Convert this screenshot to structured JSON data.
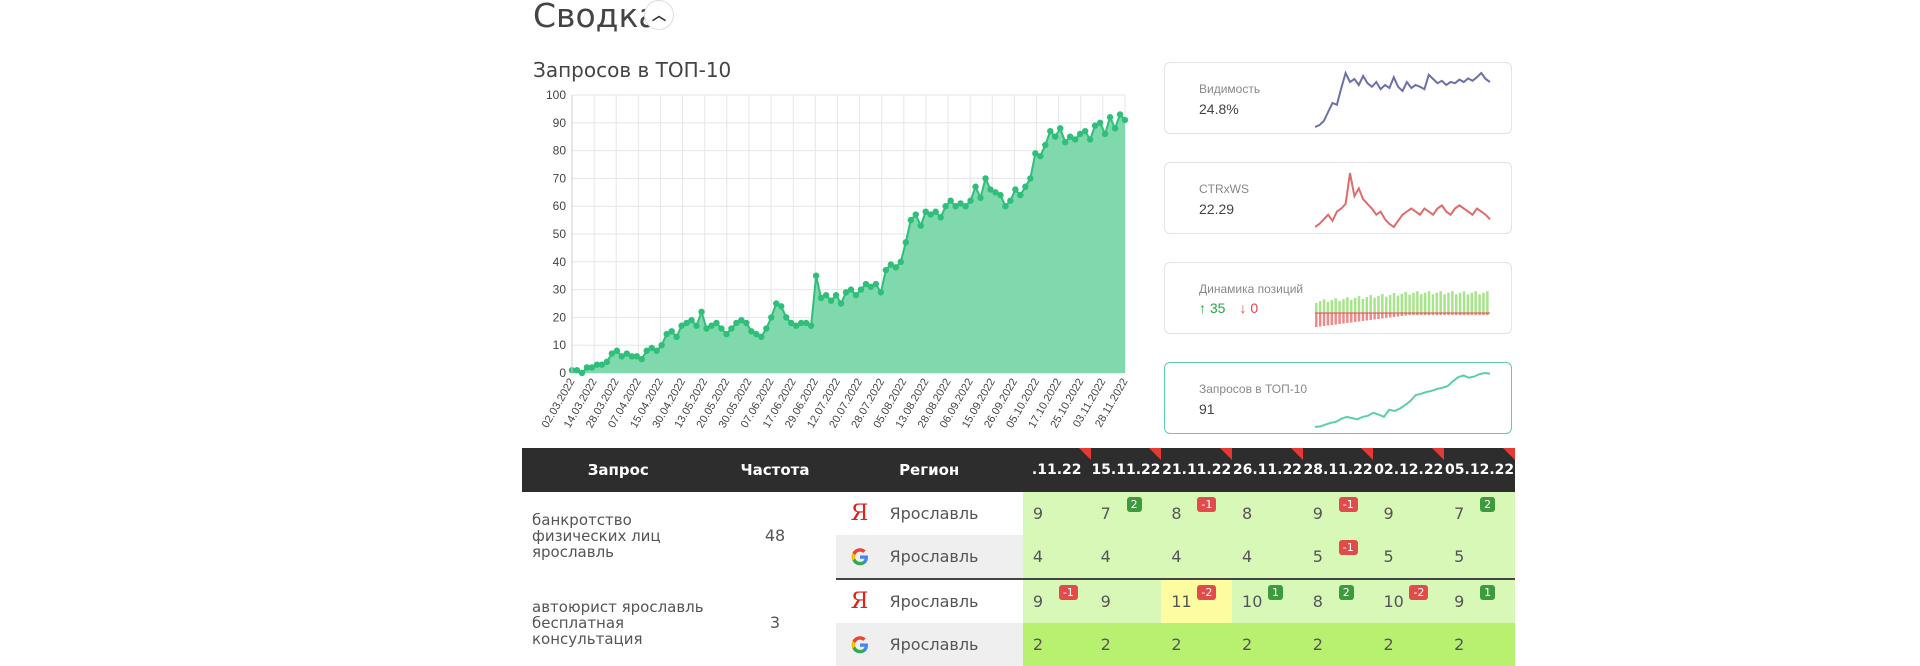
{
  "header": {
    "title": "Сводка",
    "collapse_icon": "chevron-up-icon"
  },
  "main_chart": {
    "title": "Запросов в ТОП-10",
    "chart_data": {
      "type": "area",
      "title": "Запросов в ТОП-10",
      "ylim": [
        0,
        100
      ],
      "yticks": [
        "0",
        "10",
        "20",
        "30",
        "40",
        "50",
        "60",
        "70",
        "80",
        "90",
        "100"
      ],
      "xticks": [
        "02.03.2022",
        "14.03.2022",
        "28.03.2022",
        "07.04.2022",
        "15.04.2022",
        "30.04.2022",
        "13.05.2022",
        "20.05.2022",
        "30.05.2022",
        "07.06.2022",
        "17.06.2022",
        "29.06.2022",
        "12.07.2022",
        "20.07.2022",
        "28.07.2022",
        "05.08.2022",
        "13.08.2022",
        "28.08.2022",
        "06.09.2022",
        "15.09.2022",
        "26.09.2022",
        "05.10.2022",
        "17.10.2022",
        "25.10.2022",
        "03.11.2022",
        "28.11.2022"
      ],
      "values": [
        1,
        1,
        0,
        2,
        2,
        3,
        3,
        4,
        7,
        8,
        6,
        7,
        6,
        6,
        5,
        8,
        9,
        8,
        10,
        14,
        15,
        13,
        17,
        18,
        19,
        17,
        22,
        16,
        17,
        18,
        16,
        14,
        16,
        18,
        19,
        18,
        15,
        14,
        13,
        16,
        20,
        25,
        24,
        20,
        18,
        17,
        18,
        18,
        17,
        35,
        27,
        28,
        26,
        28,
        25,
        29,
        30,
        28,
        30,
        32,
        31,
        32,
        29,
        37,
        39,
        38,
        40,
        47,
        55,
        57,
        53,
        58,
        57,
        58,
        56,
        60,
        62,
        60,
        61,
        60,
        62,
        67,
        63,
        70,
        66,
        65,
        64,
        60,
        62,
        66,
        64,
        67,
        70,
        79,
        78,
        82,
        87,
        85,
        88,
        83,
        85,
        84,
        86,
        87,
        84,
        89,
        90,
        86,
        92,
        88,
        93,
        91
      ]
    }
  },
  "cards": [
    {
      "label": "Видимость",
      "value": "24.8%",
      "color": "#6b70a8",
      "spark": [
        5,
        8,
        15,
        30,
        45,
        42,
        70,
        95,
        80,
        85,
        75,
        90,
        78,
        72,
        80,
        68,
        75,
        70,
        88,
        72,
        65,
        80,
        70,
        75,
        72,
        68,
        92,
        85,
        78,
        82,
        75,
        80,
        78,
        84,
        80,
        86,
        82,
        88,
        95,
        85,
        80
      ]
    },
    {
      "label": "CTRxWS",
      "value": "22.29",
      "color": "#e06b6b",
      "spark": [
        10,
        12,
        15,
        18,
        14,
        20,
        22,
        25,
        45,
        30,
        35,
        28,
        25,
        22,
        18,
        20,
        15,
        12,
        10,
        14,
        18,
        20,
        22,
        20,
        18,
        22,
        20,
        18,
        22,
        24,
        20,
        18,
        22,
        24,
        22,
        20,
        18,
        22,
        20,
        18,
        15
      ]
    },
    {
      "label": "Динамика позиций",
      "up": "↑ 35",
      "down": "↓ 0"
    },
    {
      "label": "Запросов в ТОП-10",
      "value": "91",
      "color": "#5ccfa7",
      "spark": [
        1,
        2,
        5,
        8,
        10,
        15,
        18,
        16,
        14,
        18,
        20,
        25,
        22,
        18,
        30,
        28,
        32,
        38,
        45,
        55,
        57,
        60,
        62,
        65,
        67,
        70,
        78,
        85,
        88,
        84,
        86,
        90,
        92,
        91
      ]
    }
  ],
  "table": {
    "headers": {
      "query": "Запрос",
      "freq": "Частота",
      "region": "Регион"
    },
    "dates": [
      ".11.22",
      "15.11.22",
      "21.11.22",
      "26.11.22",
      "28.11.22",
      "02.12.22",
      "05.12.22"
    ],
    "rows": [
      {
        "query": "банкротство физических лиц ярославль",
        "freq": "48",
        "engines": [
          {
            "engine": "yandex-icon",
            "symbol": "Я",
            "region": "Ярославль",
            "cells": [
              {
                "v": "9",
                "b": null,
                "c": "bg-light"
              },
              {
                "v": "7",
                "b": "2",
                "c": "bg-light"
              },
              {
                "v": "8",
                "b": "-1",
                "c": "bg-light"
              },
              {
                "v": "8",
                "b": null,
                "c": "bg-light"
              },
              {
                "v": "9",
                "b": "-1",
                "c": "bg-light"
              },
              {
                "v": "9",
                "b": null,
                "c": "bg-light"
              },
              {
                "v": "7",
                "b": "2",
                "c": "bg-light"
              }
            ]
          },
          {
            "engine": "google-icon",
            "symbol": "G",
            "region": "Ярославль",
            "cells": [
              {
                "v": "4",
                "b": null,
                "c": "bg-light"
              },
              {
                "v": "4",
                "b": null,
                "c": "bg-light"
              },
              {
                "v": "4",
                "b": null,
                "c": "bg-light"
              },
              {
                "v": "4",
                "b": null,
                "c": "bg-light"
              },
              {
                "v": "5",
                "b": "-1",
                "c": "bg-light"
              },
              {
                "v": "5",
                "b": null,
                "c": "bg-light"
              },
              {
                "v": "5",
                "b": null,
                "c": "bg-light"
              }
            ]
          }
        ]
      },
      {
        "query": "автоюрист ярославль бесплатная консультация",
        "freq": "3",
        "engines": [
          {
            "engine": "yandex-icon",
            "symbol": "Я",
            "region": "Ярославль",
            "cells": [
              {
                "v": "9",
                "b": "-1",
                "c": "bg-light"
              },
              {
                "v": "9",
                "b": null,
                "c": "bg-light"
              },
              {
                "v": "11",
                "b": "-2",
                "c": "bg-yellow"
              },
              {
                "v": "10",
                "b": "1",
                "c": "bg-light"
              },
              {
                "v": "8",
                "b": "2",
                "c": "bg-light"
              },
              {
                "v": "10",
                "b": "-2",
                "c": "bg-light"
              },
              {
                "v": "9",
                "b": "1",
                "c": "bg-light"
              }
            ]
          },
          {
            "engine": "google-icon",
            "symbol": "G",
            "region": "Ярославль",
            "cells": [
              {
                "v": "2",
                "b": null,
                "c": "bg-strong"
              },
              {
                "v": "2",
                "b": null,
                "c": "bg-strong"
              },
              {
                "v": "2",
                "b": null,
                "c": "bg-strong"
              },
              {
                "v": "2",
                "b": null,
                "c": "bg-strong"
              },
              {
                "v": "2",
                "b": null,
                "c": "bg-strong"
              },
              {
                "v": "2",
                "b": null,
                "c": "bg-strong"
              },
              {
                "v": "2",
                "b": null,
                "c": "bg-strong"
              }
            ]
          }
        ]
      }
    ]
  }
}
